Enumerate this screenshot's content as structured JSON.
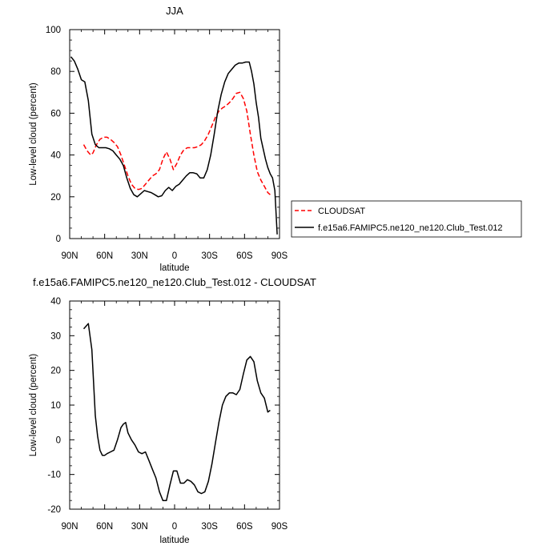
{
  "chart_data": [
    {
      "type": "line",
      "title": "JJA",
      "xlabel": "latitude",
      "ylabel": "Low-level cloud (percent)",
      "xlim": [
        90,
        -90
      ],
      "ylim": [
        0,
        100
      ],
      "xticks": [
        90,
        60,
        30,
        0,
        -30,
        -60,
        -90
      ],
      "xticklabels": [
        "90N",
        "60N",
        "30N",
        "0",
        "30S",
        "60S",
        "90S"
      ],
      "yticks": [
        0,
        20,
        40,
        60,
        80,
        100
      ],
      "yticklabels": [
        "0",
        "20",
        "40",
        "60",
        "80",
        "100"
      ],
      "grid": false,
      "legend_position": "right",
      "series": [
        {
          "name": "CLOUDSAT",
          "color": "#ff0000",
          "style": "dashed",
          "x": [
            78,
            75,
            72,
            70,
            67,
            64,
            61,
            58,
            55,
            52,
            49,
            46,
            43,
            40,
            37,
            34,
            31,
            28,
            25,
            22,
            19,
            16,
            13,
            10,
            7,
            4,
            1,
            -2,
            -5,
            -8,
            -11,
            -14,
            -17,
            -20,
            -23,
            -26,
            -29,
            -32,
            -35,
            -38,
            -41,
            -44,
            -47,
            -50,
            -53,
            -56,
            -59,
            -62,
            -65,
            -68,
            -71,
            -74,
            -77,
            -80,
            -82
          ],
          "values": [
            45,
            42,
            40,
            41,
            45,
            47.5,
            48.5,
            48.5,
            47.5,
            46,
            44,
            40,
            35,
            30,
            26,
            24,
            23.5,
            24,
            26,
            28,
            30,
            31,
            33,
            38,
            41.5,
            38,
            33,
            36,
            40,
            42.5,
            43.5,
            43.5,
            43.5,
            44,
            45,
            47,
            50,
            54,
            58,
            61,
            62.5,
            63.5,
            65,
            67,
            69.5,
            70,
            67,
            61,
            50,
            40,
            32,
            28,
            25,
            22,
            21
          ]
        },
        {
          "name": "f.e15a6.FAMIPC5.ne120_ne120.Club_Test.012",
          "color": "#000000",
          "style": "solid",
          "x": [
            89,
            86,
            83,
            80,
            77,
            74,
            71,
            68,
            65,
            62,
            59,
            56,
            53,
            50,
            47,
            44,
            41,
            38,
            35,
            32,
            29,
            26,
            23,
            20,
            17,
            14,
            11,
            8,
            5,
            2,
            -1,
            -4,
            -7,
            -10,
            -13,
            -16,
            -19,
            -22,
            -25,
            -28,
            -31,
            -34,
            -37,
            -40,
            -43,
            -46,
            -49,
            -52,
            -55,
            -58,
            -61,
            -64,
            -66,
            -68,
            -70,
            -72,
            -74,
            -76,
            -78,
            -80,
            -82,
            -84,
            -86,
            -88
          ],
          "values": [
            87,
            85,
            81,
            76,
            75,
            66,
            50,
            45,
            43.5,
            43.5,
            43.5,
            43,
            42,
            40,
            38,
            35,
            29,
            24,
            21,
            20,
            21.5,
            23,
            22.5,
            22,
            21,
            20,
            20.5,
            23,
            24.5,
            23,
            25,
            26,
            28,
            30,
            31.5,
            31.5,
            31,
            29,
            29,
            33,
            40,
            50,
            61,
            69,
            75,
            79,
            81,
            83,
            84,
            84,
            84.5,
            84.5,
            80,
            74,
            65,
            58,
            48,
            43,
            38,
            34,
            31,
            29,
            23,
            2
          ]
        }
      ]
    },
    {
      "type": "line",
      "title": "f.e15a6.FAMIPC5.ne120_ne120.Club_Test.012 - CLOUDSAT",
      "xlabel": "latitude",
      "ylabel": "Low-level cloud (percent)",
      "xlim": [
        90,
        -90
      ],
      "ylim": [
        -20,
        40
      ],
      "xticks": [
        90,
        60,
        30,
        0,
        -30,
        -60,
        -90
      ],
      "xticklabels": [
        "90N",
        "60N",
        "30N",
        "0",
        "30S",
        "60S",
        "90S"
      ],
      "yticks": [
        -20,
        -10,
        0,
        10,
        20,
        30,
        40
      ],
      "yticklabels": [
        "-20",
        "-10",
        "0",
        "10",
        "20",
        "30",
        "40"
      ],
      "grid": false,
      "series": [
        {
          "color": "#000000",
          "style": "solid",
          "x": [
            78,
            74,
            71,
            68,
            66,
            64,
            62,
            60,
            58,
            55,
            52,
            49,
            46,
            44,
            42,
            40,
            37,
            34,
            31,
            28,
            25,
            22,
            19,
            16,
            13,
            10,
            7,
            4,
            1,
            -2,
            -5,
            -8,
            -11,
            -14,
            -17,
            -20,
            -23,
            -26,
            -29,
            -32,
            -35,
            -38,
            -41,
            -44,
            -47,
            -50,
            -53,
            -56,
            -59,
            -62,
            -65,
            -68,
            -71,
            -74,
            -77,
            -80,
            -82
          ],
          "values": [
            32,
            33.5,
            26,
            7,
            1,
            -3,
            -4.5,
            -4.5,
            -4,
            -3.5,
            -3,
            0,
            3.5,
            4.5,
            5,
            2,
            0,
            -1.5,
            -3.5,
            -4,
            -3.5,
            -6,
            -8.5,
            -11,
            -15,
            -17.5,
            -17.5,
            -13,
            -9,
            -9,
            -12.5,
            -12.5,
            -11.5,
            -12,
            -13,
            -15,
            -15.5,
            -15,
            -12,
            -7,
            -1,
            5,
            10,
            12.5,
            13.5,
            13.5,
            13,
            14.5,
            19,
            23,
            24,
            22.5,
            17,
            13.5,
            12,
            8,
            8.5
          ]
        }
      ]
    }
  ]
}
